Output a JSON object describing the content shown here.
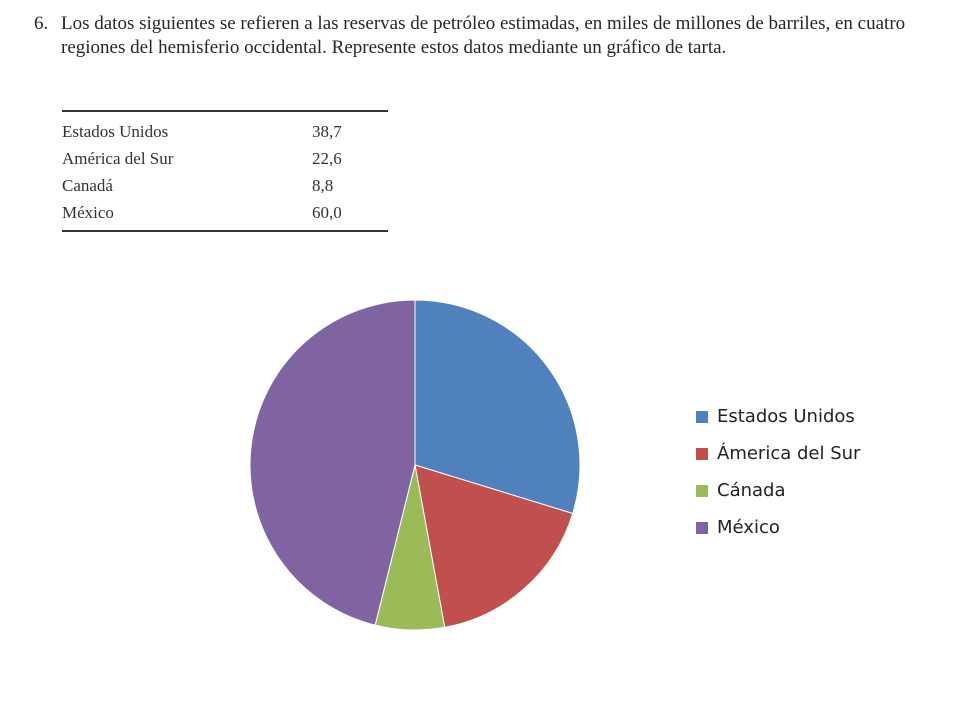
{
  "problem": {
    "number": "6.",
    "text": "Los datos siguientes se refieren a las reservas de petróleo estimadas, en miles de millones de barriles, en cuatro regiones del hemisferio occidental. Represente estos datos mediante un gráfico de tarta."
  },
  "table": {
    "rows": [
      {
        "region": "Estados Unidos",
        "value": "38,7"
      },
      {
        "region": "América del Sur",
        "value": "22,6"
      },
      {
        "region": "Canadá",
        "value": "8,8"
      },
      {
        "region": "México",
        "value": "60,0"
      }
    ]
  },
  "chart_data": {
    "type": "pie",
    "categories": [
      "Estados Unidos",
      "Ámerica del Sur",
      "Cánada",
      "México"
    ],
    "values": [
      38.7,
      22.6,
      8.8,
      60.0
    ],
    "colors": [
      "#4f81bd",
      "#c0504d",
      "#9bbb59",
      "#8064a2"
    ],
    "legend": "right"
  }
}
